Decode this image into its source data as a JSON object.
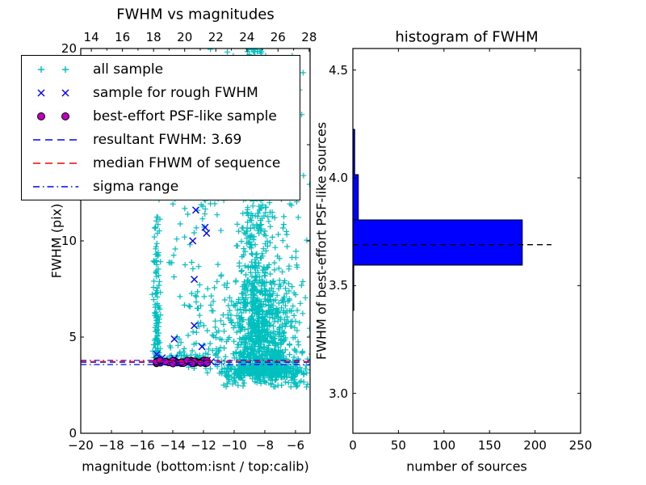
{
  "colors": {
    "cyan": "#00bfbf",
    "blue": "#0000ff",
    "magenta": "#bf00bf",
    "red": "#ff0000",
    "black": "#000000",
    "background": "#ffffff"
  },
  "legend": {
    "items": [
      {
        "label": "all sample",
        "marker": "plus",
        "color_key": "cyan"
      },
      {
        "label": "sample for rough FWHM",
        "marker": "x",
        "color_key": "blue"
      },
      {
        "label": "best-effort PSF-like sample",
        "marker": "circle",
        "color_key": "magenta"
      },
      {
        "label": "resultant FWHM: 3.69",
        "marker": "dashed",
        "color_key": "blue"
      },
      {
        "label": "median FHWM of sequence",
        "marker": "dashed",
        "color_key": "red"
      },
      {
        "label": "sigma range",
        "marker": "dashdot",
        "color_key": "blue"
      }
    ]
  },
  "chart_data": [
    {
      "type": "scatter",
      "title": "FWHM vs magnitudes",
      "xlabel": "magnitude (bottom:isnt / top:calib)",
      "ylabel": "FWHM (pix)",
      "xlim": [
        -20,
        -5.05
      ],
      "ylim": [
        0,
        20
      ],
      "x_ticks": [
        -20,
        -18,
        -16,
        -14,
        -12,
        -10,
        -8,
        -6
      ],
      "y_ticks": [
        0,
        5,
        10,
        15,
        20
      ],
      "top_axis": {
        "ticks": [
          14,
          16,
          18,
          20,
          22,
          24,
          26,
          28
        ],
        "lim": [
          13.32,
          28.06
        ],
        "minor_step": 1
      },
      "series": [
        {
          "name": "all sample",
          "marker": "plus",
          "color": "#00bfbf",
          "clusters": [
            {
              "seed": 11,
              "n": 550,
              "x": [
                "normal",
                -8.75,
                0.5
              ],
              "y": [
                "uniform",
                3.3,
                20.2
              ]
            },
            {
              "seed": 22,
              "n": 800,
              "x": [
                "normal",
                -8.3,
                1.2
              ],
              "y": [
                "powlow",
                3.1,
                8.0,
                2.2
              ]
            },
            {
              "seed": 33,
              "n": 120,
              "x": [
                "uniform",
                -10.8,
                -5.2
              ],
              "y": [
                "uniform",
                2.4,
                3.4
              ]
            },
            {
              "seed": 44,
              "n": 140,
              "x": [
                "uniform",
                -14.3,
                -10.6
              ],
              "y": [
                "powlow",
                3.6,
                16.0,
                1.8
              ]
            },
            {
              "seed": 55,
              "n": 70,
              "x": [
                "uniform",
                -13.0,
                -5.4
              ],
              "y": [
                "uniform",
                14.0,
                20.2
              ]
            },
            {
              "seed": 66,
              "n": 115,
              "x": [
                "normal",
                -15.05,
                0.1
              ],
              "y": [
                "powlow",
                3.8,
                12.4,
                1.5
              ]
            },
            {
              "seed": 77,
              "n": 55,
              "x": [
                "uniform",
                -15.2,
                -11.6
              ],
              "y": [
                "normal",
                3.85,
                0.18
              ]
            },
            {
              "seed": 88,
              "n": 260,
              "x": [
                "normal",
                -7.2,
                1.1
              ],
              "y": [
                "powlow",
                2.9,
                14.0,
                2.6
              ]
            }
          ]
        },
        {
          "name": "sample for rough FWHM",
          "marker": "x",
          "color": "#0000ff",
          "points": [
            [
              -12.5,
              11.6
            ],
            [
              -11.9,
              10.7
            ],
            [
              -11.8,
              10.4
            ],
            [
              -12.7,
              10.0
            ],
            [
              -12.6,
              8.0
            ],
            [
              -12.6,
              5.6
            ],
            [
              -13.9,
              4.9
            ],
            [
              -12.1,
              4.5
            ],
            [
              -13.9,
              3.9
            ],
            [
              -14.7,
              3.92
            ],
            [
              -15.05,
              4.1
            ],
            [
              -12.6,
              3.72
            ],
            [
              -13.3,
              3.68
            ],
            [
              -14.2,
              3.76
            ],
            [
              -11.75,
              3.8
            ],
            [
              -11.5,
              3.72
            ]
          ]
        },
        {
          "name": "best-effort PSF-like sample",
          "marker": "circle",
          "color": "#bf00bf",
          "clusters": [
            {
              "seed": 99,
              "n": 42,
              "x": [
                "uniform",
                -15.1,
                -11.75
              ],
              "y": [
                "normal",
                3.71,
                0.05
              ]
            }
          ]
        }
      ],
      "hlines": [
        {
          "label": "resultant FWHM: 3.69",
          "y": 3.69,
          "dash": "dashed",
          "color": "#0000ff"
        },
        {
          "label": "median FHWM of sequence",
          "y": 3.73,
          "dash": "dashed",
          "color": "#ff0000"
        },
        {
          "label": "sigma range",
          "y": 3.57,
          "dash": "dashdot",
          "color": "#0000ff"
        },
        {
          "label": "sigma range",
          "y": 3.79,
          "dash": "dashdot",
          "color": "#0000ff"
        }
      ]
    },
    {
      "type": "bar",
      "orientation": "horizontal",
      "title": "histogram of FWHM",
      "xlabel": "number of sources",
      "ylabel": "FWHM of best-effort PSF-like sources",
      "xlim": [
        0,
        250
      ],
      "ylim": [
        2.815,
        4.6
      ],
      "x_ticks": [
        0,
        50,
        100,
        150,
        200,
        250
      ],
      "y_ticks": [
        3.0,
        3.5,
        4.0,
        4.5
      ],
      "y_tick_decimals": 1,
      "bar_color": "#0000ff",
      "bars": [
        {
          "from": 3.385,
          "to": 3.595,
          "count": 1
        },
        {
          "from": 3.595,
          "to": 3.805,
          "count": 186
        },
        {
          "from": 3.805,
          "to": 4.015,
          "count": 6
        },
        {
          "from": 4.015,
          "to": 4.225,
          "count": 2
        }
      ],
      "median_line": {
        "value": 3.69,
        "from": 0,
        "to": 218,
        "color": "#000000",
        "dash": "dashed"
      }
    }
  ]
}
